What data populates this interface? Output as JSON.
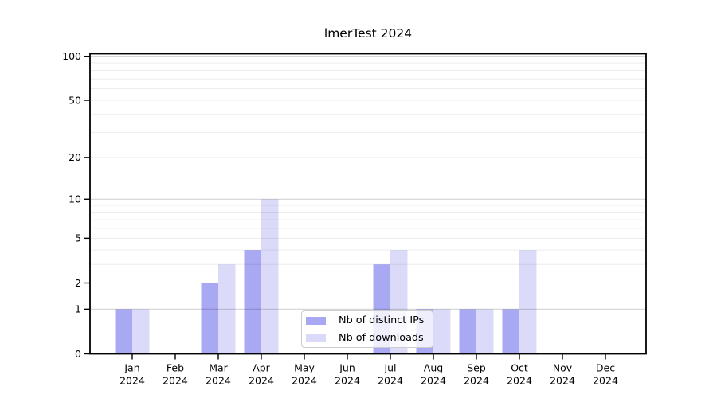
{
  "chart_data": {
    "type": "bar",
    "title": "lmerTest 2024",
    "categories": [
      "Jan 2024",
      "Feb 2024",
      "Mar 2024",
      "Apr 2024",
      "May 2024",
      "Jun 2024",
      "Jul 2024",
      "Aug 2024",
      "Sep 2024",
      "Oct 2024",
      "Nov 2024",
      "Dec 2024"
    ],
    "series": [
      {
        "name": "Nb of distinct IPs",
        "color": "#a8a8f3",
        "values": [
          1,
          0,
          2,
          4,
          0,
          0,
          3,
          1,
          1,
          1,
          0,
          0
        ]
      },
      {
        "name": "Nb of downloads",
        "color": "#dbdbf9",
        "values": [
          1,
          0,
          3,
          10,
          0,
          0,
          4,
          1,
          1,
          4,
          0,
          0
        ]
      }
    ],
    "yticks": [
      0,
      1,
      2,
      5,
      10,
      20,
      50,
      100
    ],
    "yaxis_scale": "log1p",
    "ylim": [
      0,
      100
    ],
    "xlabel": "",
    "ylabel": "",
    "grid": {
      "minor": [
        2,
        3,
        4,
        5,
        6,
        7,
        8,
        9,
        20,
        30,
        40,
        50,
        60,
        70,
        80,
        90
      ],
      "major": [
        1,
        10,
        100
      ]
    },
    "legend": {
      "position": "inside-bottom-center",
      "labels": [
        "Nb of distinct IPs",
        "Nb of downloads"
      ]
    }
  }
}
